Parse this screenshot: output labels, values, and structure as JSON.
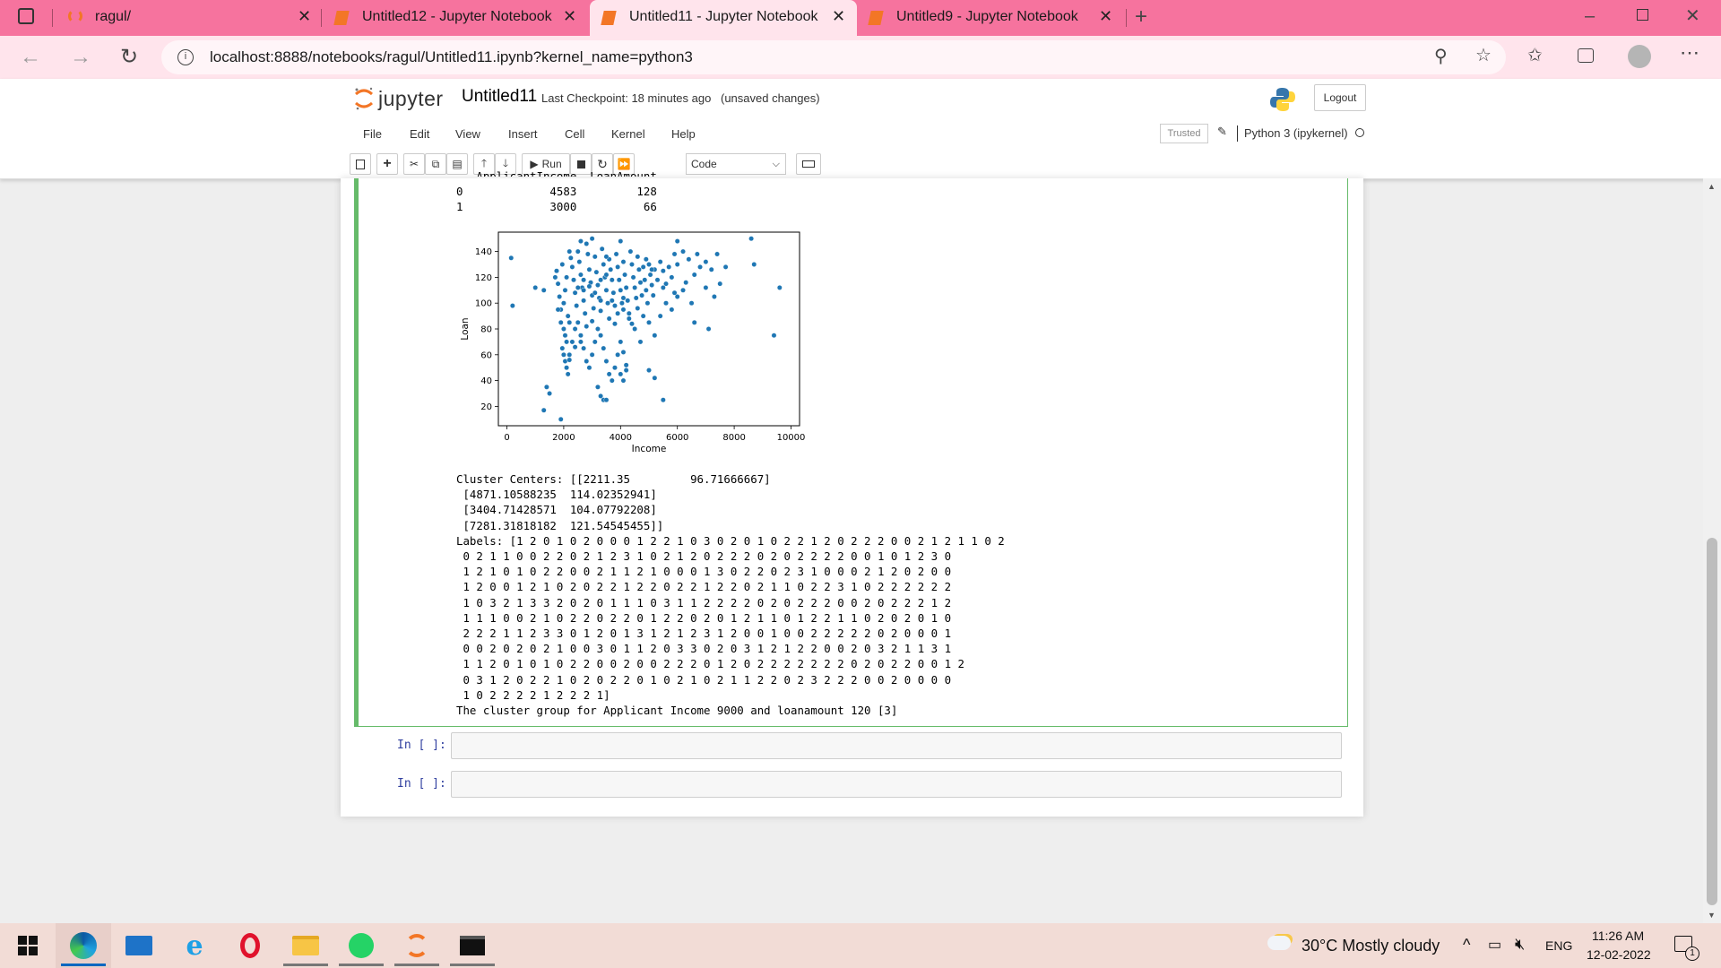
{
  "browser": {
    "tabs": [
      {
        "title": "ragul/",
        "active": false
      },
      {
        "title": "Untitled12 - Jupyter Notebook",
        "active": false
      },
      {
        "title": "Untitled11 - Jupyter Notebook",
        "active": true
      },
      {
        "title": "Untitled9 - Jupyter Notebook",
        "active": false
      }
    ],
    "url": "localhost:8888/notebooks/ragul/Untitled11.ipynb?kernel_name=python3"
  },
  "jupyter": {
    "logo_text": "jupyter",
    "notebook_name": "Untitled11",
    "checkpoint": "Last Checkpoint: 18 minutes ago",
    "unsaved": "(unsaved changes)",
    "logout_label": "Logout",
    "menu": [
      "File",
      "Edit",
      "View",
      "Insert",
      "Cell",
      "Kernel",
      "Help"
    ],
    "trusted_label": "Trusted",
    "kernel_name": "Python 3 (ipykernel)",
    "run_label": "Run",
    "cell_type": "Code"
  },
  "output": {
    "table_lines": [
      "   ApplicantIncome  LoanAmount",
      "0             4583         128",
      "1             3000          66"
    ],
    "text_lines": [
      "Cluster Centers: [[2211.35         96.71666667]",
      " [4871.10588235  114.02352941]",
      " [3404.71428571  104.07792208]",
      " [7281.31818182  121.54545455]]",
      "Labels: [1 2 0 1 0 2 0 0 0 1 2 2 1 0 3 0 2 0 1 0 2 2 1 2 0 2 2 2 0 0 2 1 2 1 1 0 2",
      " 0 2 1 1 0 0 2 2 0 2 1 2 3 1 0 2 1 2 0 2 2 2 0 2 0 2 2 2 2 0 0 1 0 1 2 3 0",
      " 1 2 1 0 1 0 2 2 0 0 2 1 1 2 1 0 0 0 1 3 0 2 2 0 2 3 1 0 0 0 2 1 2 0 2 0 0",
      " 1 2 0 0 1 2 1 0 2 0 2 2 1 2 2 0 2 2 1 2 2 0 2 1 1 0 2 2 3 1 0 2 2 2 2 2 2",
      " 1 0 3 2 1 3 3 2 0 2 0 1 1 1 0 3 1 1 2 2 2 2 0 2 0 2 2 2 0 0 2 0 2 2 2 1 2",
      " 1 1 1 0 0 2 1 0 2 2 0 2 2 0 1 2 2 0 2 0 1 2 1 1 0 1 2 2 1 1 0 2 0 2 0 1 0",
      " 2 2 2 1 1 2 3 3 0 1 2 0 1 3 1 2 1 2 3 1 2 0 0 1 0 0 2 2 2 2 2 0 2 0 0 0 1",
      " 0 0 2 0 2 0 2 1 0 0 3 0 1 1 2 0 3 3 0 2 0 3 1 2 1 2 2 0 0 2 0 3 2 1 1 3 1",
      " 1 1 2 0 1 0 1 0 2 2 0 0 2 0 0 2 2 2 0 1 2 0 2 2 2 2 2 2 2 0 2 0 2 2 0 0 1 2",
      " 0 3 1 2 0 2 2 1 0 2 0 2 2 0 1 0 2 1 0 2 1 1 2 2 0 2 3 2 2 2 0 0 2 0 0 0 0",
      " 1 0 2 2 2 2 1 2 2 2 1]",
      "The cluster group for Applicant Income 9000 and loanamount 120 [3]"
    ],
    "prompts": [
      "In [ ]:",
      "In [ ]:"
    ]
  },
  "chart_data": {
    "type": "scatter",
    "title": "",
    "xlabel": "Income",
    "ylabel": "Loan",
    "xlim": [
      -300,
      10300
    ],
    "ylim": [
      5,
      155
    ],
    "xticks": [
      0,
      2000,
      4000,
      6000,
      8000,
      10000
    ],
    "yticks": [
      20,
      40,
      60,
      80,
      100,
      120,
      140
    ],
    "color": "#1f77b4",
    "points": [
      [
        150,
        135
      ],
      [
        200,
        98
      ],
      [
        1000,
        112
      ],
      [
        1300,
        110
      ],
      [
        1300,
        17
      ],
      [
        1400,
        35
      ],
      [
        1500,
        30
      ],
      [
        1900,
        10
      ],
      [
        1700,
        120
      ],
      [
        1750,
        125
      ],
      [
        1800,
        115
      ],
      [
        1850,
        105
      ],
      [
        1900,
        95
      ],
      [
        1950,
        130
      ],
      [
        2000,
        100
      ],
      [
        2050,
        110
      ],
      [
        2100,
        120
      ],
      [
        2150,
        90
      ],
      [
        2200,
        85
      ],
      [
        2250,
        135
      ],
      [
        2300,
        128
      ],
      [
        2350,
        118
      ],
      [
        2400,
        108
      ],
      [
        2450,
        98
      ],
      [
        2500,
        140
      ],
      [
        2550,
        132
      ],
      [
        2600,
        122
      ],
      [
        2650,
        112
      ],
      [
        2700,
        102
      ],
      [
        2750,
        92
      ],
      [
        2800,
        146
      ],
      [
        2850,
        138
      ],
      [
        2900,
        126
      ],
      [
        2950,
        116
      ],
      [
        3000,
        106
      ],
      [
        3050,
        96
      ],
      [
        3100,
        136
      ],
      [
        3150,
        124
      ],
      [
        3200,
        114
      ],
      [
        3250,
        104
      ],
      [
        3300,
        94
      ],
      [
        3350,
        142
      ],
      [
        3400,
        130
      ],
      [
        3450,
        120
      ],
      [
        3500,
        110
      ],
      [
        3550,
        100
      ],
      [
        3600,
        134
      ],
      [
        3650,
        126
      ],
      [
        3700,
        118
      ],
      [
        3750,
        108
      ],
      [
        3800,
        98
      ],
      [
        3850,
        138
      ],
      [
        3900,
        128
      ],
      [
        3950,
        118
      ],
      [
        4000,
        110
      ],
      [
        4050,
        100
      ],
      [
        4100,
        132
      ],
      [
        4150,
        122
      ],
      [
        4200,
        112
      ],
      [
        4250,
        102
      ],
      [
        4300,
        92
      ],
      [
        4350,
        140
      ],
      [
        4400,
        130
      ],
      [
        4450,
        120
      ],
      [
        4500,
        112
      ],
      [
        4550,
        104
      ],
      [
        4600,
        136
      ],
      [
        4650,
        126
      ],
      [
        4700,
        116
      ],
      [
        4750,
        106
      ],
      [
        4800,
        128
      ],
      [
        4850,
        118
      ],
      [
        4900,
        110
      ],
      [
        4950,
        100
      ],
      [
        5000,
        130
      ],
      [
        5050,
        122
      ],
      [
        5100,
        114
      ],
      [
        5150,
        106
      ],
      [
        5200,
        126
      ],
      [
        5300,
        118
      ],
      [
        5400,
        132
      ],
      [
        5500,
        125
      ],
      [
        5600,
        115
      ],
      [
        5700,
        128
      ],
      [
        5800,
        120
      ],
      [
        5900,
        138
      ],
      [
        6000,
        130
      ],
      [
        6200,
        140
      ],
      [
        6400,
        134
      ],
      [
        6600,
        122
      ],
      [
        6800,
        128
      ],
      [
        7000,
        132
      ],
      [
        7200,
        126
      ],
      [
        1800,
        95
      ],
      [
        1900,
        85
      ],
      [
        2000,
        80
      ],
      [
        2050,
        75
      ],
      [
        2100,
        70
      ],
      [
        1950,
        65
      ],
      [
        2000,
        60
      ],
      [
        2050,
        55
      ],
      [
        2100,
        50
      ],
      [
        2150,
        45
      ],
      [
        2200,
        60
      ],
      [
        2300,
        70
      ],
      [
        2400,
        80
      ],
      [
        2500,
        85
      ],
      [
        2600,
        75
      ],
      [
        2700,
        65
      ],
      [
        2800,
        55
      ],
      [
        2900,
        50
      ],
      [
        3000,
        60
      ],
      [
        3100,
        70
      ],
      [
        3200,
        80
      ],
      [
        3300,
        75
      ],
      [
        3400,
        65
      ],
      [
        3500,
        55
      ],
      [
        3600,
        45
      ],
      [
        3700,
        40
      ],
      [
        3800,
        50
      ],
      [
        3900,
        60
      ],
      [
        4000,
        70
      ],
      [
        4100,
        62
      ],
      [
        4200,
        52
      ],
      [
        3200,
        35
      ],
      [
        3300,
        28
      ],
      [
        3400,
        25
      ],
      [
        3500,
        25
      ],
      [
        4000,
        45
      ],
      [
        4100,
        40
      ],
      [
        4200,
        48
      ],
      [
        4500,
        80
      ],
      [
        4700,
        70
      ],
      [
        5000,
        85
      ],
      [
        5200,
        75
      ],
      [
        5400,
        90
      ],
      [
        5600,
        100
      ],
      [
        5800,
        95
      ],
      [
        6000,
        105
      ],
      [
        6200,
        110
      ],
      [
        6500,
        100
      ],
      [
        6600,
        85
      ],
      [
        7100,
        80
      ],
      [
        7300,
        105
      ],
      [
        7500,
        115
      ],
      [
        2900,
        113
      ],
      [
        3100,
        108
      ],
      [
        3300,
        118
      ],
      [
        3500,
        122
      ],
      [
        3700,
        102
      ],
      [
        3900,
        92
      ],
      [
        4100,
        95
      ],
      [
        4300,
        88
      ],
      [
        2500,
        112
      ],
      [
        2700,
        118
      ],
      [
        3300,
        102
      ],
      [
        3600,
        88
      ],
      [
        3800,
        84
      ],
      [
        3000,
        86
      ],
      [
        2800,
        82
      ],
      [
        2600,
        70
      ],
      [
        2400,
        66
      ],
      [
        2200,
        56
      ],
      [
        2700,
        110
      ],
      [
        3500,
        136
      ],
      [
        4900,
        134
      ],
      [
        5100,
        126
      ],
      [
        5500,
        112
      ],
      [
        5900,
        108
      ],
      [
        6300,
        116
      ],
      [
        6700,
        138
      ],
      [
        7700,
        128
      ],
      [
        7000,
        112
      ],
      [
        5000,
        48
      ],
      [
        5200,
        42
      ],
      [
        5500,
        25
      ],
      [
        4100,
        104
      ],
      [
        4400,
        84
      ],
      [
        4600,
        96
      ],
      [
        4800,
        90
      ],
      [
        8600,
        150
      ],
      [
        8700,
        130
      ],
      [
        9600,
        112
      ],
      [
        9400,
        75
      ],
      [
        6000,
        148
      ],
      [
        7400,
        138
      ],
      [
        2200,
        140
      ],
      [
        3000,
        150
      ],
      [
        2600,
        148
      ],
      [
        4000,
        148
      ]
    ]
  },
  "taskbar": {
    "weather": "30°C  Mostly cloudy",
    "language": "ENG",
    "time": "11:26 AM",
    "date": "12-02-2022",
    "notifications": "1"
  }
}
